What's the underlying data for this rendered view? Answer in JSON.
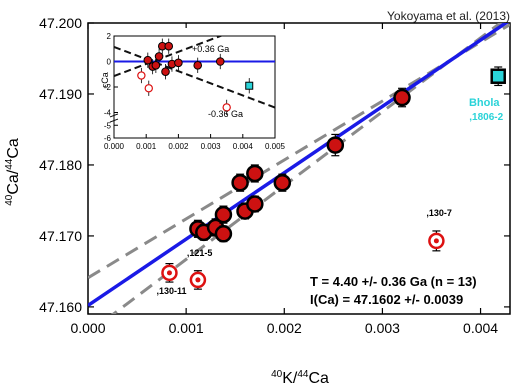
{
  "chart_data": {
    "type": "scatter",
    "source_note": "Yokoyama et al. (2013)",
    "xlabel": {
      "sup1": "40",
      "base1": "K/",
      "sup2": "44",
      "base2": "Ca"
    },
    "ylabel": {
      "sup1": "40",
      "base1": "Ca/",
      "sup2": "44",
      "base2": "Ca"
    },
    "xlim": [
      0.0,
      0.0043
    ],
    "ylim": [
      47.159,
      47.2
    ],
    "x_ticks": [
      0.0,
      0.001,
      0.002,
      0.003,
      0.004
    ],
    "x_tick_labels": [
      "0.000",
      "0.001",
      "0.002",
      "0.003",
      "0.004"
    ],
    "y_ticks": [
      47.16,
      47.17,
      47.18,
      47.19,
      47.2
    ],
    "y_tick_labels": [
      "47.160",
      "47.170",
      "47.180",
      "47.190",
      "47.200"
    ],
    "fit_line": {
      "slope": 9.35,
      "intercept": 47.1602,
      "color": "#1a1ae6"
    },
    "error_envelope": {
      "upper": {
        "slope": 8.3,
        "intercept": 47.1641
      },
      "lower": {
        "slope": 10.4,
        "intercept": 47.1563
      },
      "color": "#8a8a8a"
    },
    "filled_points": [
      {
        "x": 0.00112,
        "y": 47.171,
        "err": 0.0012
      },
      {
        "x": 0.00118,
        "y": 47.1705,
        "err": 0.0011
      },
      {
        "x": 0.0013,
        "y": 47.1712,
        "err": 0.0012
      },
      {
        "x": 0.00138,
        "y": 47.1703,
        "err": 0.0011
      },
      {
        "x": 0.00138,
        "y": 47.173,
        "err": 0.0012
      },
      {
        "x": 0.00155,
        "y": 47.1775,
        "err": 0.0012
      },
      {
        "x": 0.0016,
        "y": 47.1735,
        "err": 0.0011
      },
      {
        "x": 0.0017,
        "y": 47.1788,
        "err": 0.0012
      },
      {
        "x": 0.0017,
        "y": 47.1745,
        "err": 0.0011
      },
      {
        "x": 0.00198,
        "y": 47.1775,
        "err": 0.0012
      },
      {
        "x": 0.00252,
        "y": 47.1828,
        "err": 0.0015
      },
      {
        "x": 0.0032,
        "y": 47.1895,
        "err": 0.0013
      }
    ],
    "open_points": [
      {
        "x": 0.00083,
        "y": 47.1648,
        "err": 0.0013,
        "label": ",130-11"
      },
      {
        "x": 0.00112,
        "y": 47.1638,
        "err": 0.0013,
        "label": ",121-5"
      },
      {
        "x": 0.00355,
        "y": 47.1693,
        "err": 0.0014,
        "label": ",130-7"
      }
    ],
    "cyan_point": {
      "x": 0.00418,
      "y": 47.1925,
      "err": 0.0013,
      "label_line1": "Bhola",
      "label_line2": ",1806-2",
      "color": "#2ad3d8"
    },
    "point_fill_color": "#cc1111",
    "annotation_line1": "T = 4.40 +/- 0.36 Ga (n = 13)",
    "annotation_line2": "I(Ca) = 47.1602 +/- 0.0039",
    "inset": {
      "ylabel": "εCa",
      "xlim": [
        0,
        0.005
      ],
      "ylim": [
        -6,
        2
      ],
      "x_tick_labels": [
        "0.000",
        "0.001",
        "0.002",
        "0.003",
        "0.004",
        "0.005"
      ],
      "y_tick_labels": [
        "2",
        "0",
        "-2",
        "-4",
        "-5",
        "-6"
      ],
      "upper_label": "+0.36 Ga",
      "lower_label": "-0.36 Ga",
      "filled_points": [
        {
          "x": 0.00105,
          "y": 0.1
        },
        {
          "x": 0.0012,
          "y": -0.4
        },
        {
          "x": 0.0013,
          "y": -0.3
        },
        {
          "x": 0.0014,
          "y": 0.4
        },
        {
          "x": 0.0015,
          "y": 1.2
        },
        {
          "x": 0.0016,
          "y": -0.8
        },
        {
          "x": 0.0017,
          "y": 1.2
        },
        {
          "x": 0.0018,
          "y": -0.2
        },
        {
          "x": 0.002,
          "y": -0.1
        },
        {
          "x": 0.0026,
          "y": -0.3
        },
        {
          "x": 0.0033,
          "y": 0.0
        }
      ],
      "open_points": [
        {
          "x": 0.00085,
          "y": -1.1
        },
        {
          "x": 0.00108,
          "y": -2.1
        },
        {
          "x": 0.0035,
          "y": -3.6
        }
      ],
      "cyan_point": {
        "x": 0.0042,
        "y": -1.9
      }
    }
  }
}
